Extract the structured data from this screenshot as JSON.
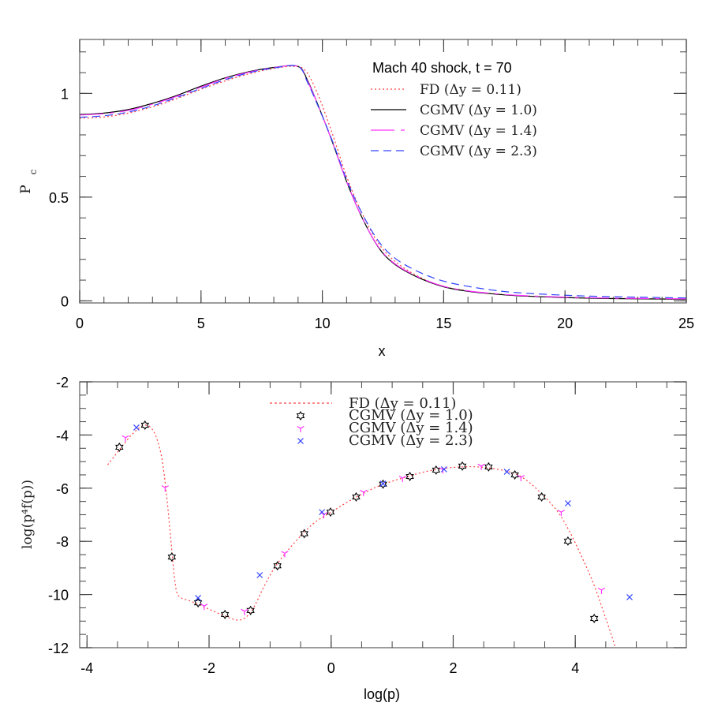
{
  "chart_data": [
    {
      "type": "line",
      "title": "Mach 40 shock, t = 70",
      "xlabel": "x",
      "ylabel": "P_c",
      "xlim": [
        0,
        25
      ],
      "ylim": [
        -0.01,
        1.26
      ],
      "xticks": [
        0,
        5,
        10,
        15,
        20,
        25
      ],
      "xtick_labels": [
        "0",
        "5",
        "10",
        "15",
        "20",
        "25"
      ],
      "yticks": [
        0,
        0.5,
        1
      ],
      "ytick_labels": [
        "0",
        "0.5",
        "1"
      ],
      "grid": false,
      "legend_position": "upper right",
      "series": [
        {
          "name": "FD (Δy = 0.11)",
          "color": "#ff4040",
          "style": "dotted",
          "x": [
            0,
            1,
            2,
            3,
            4,
            5,
            6,
            7,
            8,
            8.8,
            9.3,
            9.8,
            10.4,
            11.0,
            11.6,
            12.3,
            13,
            14,
            15,
            16,
            17,
            18,
            20,
            22,
            25
          ],
          "y": [
            0.88,
            0.886,
            0.905,
            0.935,
            0.975,
            1.02,
            1.06,
            1.095,
            1.12,
            1.13,
            1.11,
            1.0,
            0.81,
            0.6,
            0.43,
            0.28,
            0.19,
            0.115,
            0.07,
            0.048,
            0.035,
            0.026,
            0.016,
            0.012,
            0.008
          ]
        },
        {
          "name": "CGMV (Δy = 1.0)",
          "color": "#000000",
          "style": "solid",
          "x": [
            0,
            1,
            2,
            3,
            4,
            5,
            6,
            7,
            8,
            9.0,
            9.4,
            9.8,
            10.4,
            11.0,
            11.6,
            12.3,
            13,
            14,
            15,
            16,
            17,
            18,
            20,
            22,
            25
          ],
          "y": [
            0.898,
            0.905,
            0.922,
            0.952,
            0.99,
            1.035,
            1.075,
            1.105,
            1.125,
            1.13,
            1.06,
            0.95,
            0.77,
            0.575,
            0.41,
            0.26,
            0.175,
            0.11,
            0.068,
            0.046,
            0.034,
            0.025,
            0.016,
            0.011,
            0.008
          ]
        },
        {
          "name": "CGMV (Δy = 1.4)",
          "color": "#ff33ff",
          "style": "long-dash",
          "x": [
            0,
            1,
            2,
            3,
            4,
            5,
            6,
            7,
            8,
            9.0,
            9.4,
            9.8,
            10.4,
            11.0,
            11.6,
            12.3,
            13,
            14,
            15,
            16,
            17,
            18,
            20,
            22,
            25
          ],
          "y": [
            0.896,
            0.902,
            0.918,
            0.948,
            0.986,
            1.03,
            1.072,
            1.103,
            1.124,
            1.13,
            1.055,
            0.95,
            0.77,
            0.575,
            0.41,
            0.262,
            0.178,
            0.113,
            0.07,
            0.048,
            0.036,
            0.027,
            0.018,
            0.013,
            0.01
          ]
        },
        {
          "name": "CGMV (Δy = 2.3)",
          "color": "#3344ff",
          "style": "dashed",
          "x": [
            0,
            1,
            2,
            3,
            4,
            5,
            6,
            7,
            8,
            9.0,
            9.4,
            9.8,
            10.4,
            11.0,
            11.6,
            12.3,
            13,
            14,
            15,
            16,
            17,
            18,
            20,
            22,
            25
          ],
          "y": [
            0.885,
            0.892,
            0.91,
            0.94,
            0.98,
            1.024,
            1.066,
            1.1,
            1.122,
            1.13,
            1.05,
            0.945,
            0.775,
            0.585,
            0.43,
            0.29,
            0.205,
            0.138,
            0.095,
            0.07,
            0.052,
            0.04,
            0.027,
            0.02,
            0.014
          ]
        }
      ]
    },
    {
      "type": "scatter",
      "title": "",
      "xlabel": "log(p)",
      "ylabel": "log(p⁴f(p))",
      "xlim": [
        -4.12,
        5.82
      ],
      "ylim": [
        -12,
        -2
      ],
      "xticks": [
        -4,
        -2,
        0,
        2,
        4
      ],
      "xtick_labels": [
        "-4",
        "-2",
        "0",
        "2",
        "4"
      ],
      "yticks": [
        -12,
        -10,
        -8,
        -6,
        -4,
        -2
      ],
      "ytick_labels": [
        "-12",
        "-10",
        "-8",
        "-6",
        "-4",
        "-2"
      ],
      "grid": false,
      "legend_position": "upper center",
      "series": [
        {
          "name": "FD (Δy = 0.11)",
          "kind": "line",
          "color": "#ff4040",
          "style": "dotted",
          "x": [
            -3.66,
            -3.45,
            -3.25,
            -3.05,
            -2.9,
            -2.78,
            -2.7,
            -2.64,
            -2.6,
            -2.56,
            -2.5,
            -2.3,
            -2.1,
            -1.8,
            -1.5,
            -1.3,
            -1.1,
            -0.9,
            -0.6,
            -0.3,
            0.0,
            0.4,
            0.8,
            1.2,
            1.6,
            2.0,
            2.4,
            2.8,
            3.1,
            3.4,
            3.7,
            3.9,
            4.1,
            4.3,
            4.5,
            4.66
          ],
          "y": [
            -5.12,
            -4.5,
            -3.95,
            -3.63,
            -3.9,
            -4.8,
            -6.2,
            -7.6,
            -8.6,
            -9.5,
            -10.05,
            -10.25,
            -10.45,
            -10.75,
            -10.96,
            -10.6,
            -9.7,
            -8.9,
            -8.05,
            -7.35,
            -6.9,
            -6.35,
            -5.9,
            -5.6,
            -5.35,
            -5.22,
            -5.2,
            -5.32,
            -5.55,
            -6.1,
            -6.85,
            -7.6,
            -8.55,
            -9.6,
            -10.9,
            -12.0
          ]
        },
        {
          "name": "CGMV (Δy = 1.0)",
          "kind": "marker",
          "marker": "star",
          "color": "#000000",
          "x": [
            -3.47,
            -3.05,
            -2.61,
            -2.18,
            -1.74,
            -1.32,
            -0.88,
            -0.44,
            -0.01,
            0.41,
            0.85,
            1.29,
            1.72,
            2.15,
            2.58,
            3.01,
            3.45,
            3.88,
            4.31
          ],
          "y": [
            -4.46,
            -3.63,
            -8.59,
            -10.31,
            -10.75,
            -10.6,
            -8.92,
            -7.71,
            -6.9,
            -6.33,
            -5.85,
            -5.56,
            -5.32,
            -5.17,
            -5.2,
            -5.5,
            -6.33,
            -7.99,
            -10.9
          ]
        },
        {
          "name": "CGMV (Δy = 1.4)",
          "kind": "marker",
          "marker": "tri",
          "color": "#ff33ff",
          "x": [
            -3.37,
            -2.72,
            -2.08,
            -1.42,
            -0.76,
            -0.12,
            0.53,
            1.17,
            1.83,
            2.46,
            3.11,
            3.77,
            4.43
          ],
          "y": [
            -4.1,
            -5.98,
            -10.43,
            -10.63,
            -8.45,
            -6.99,
            -6.15,
            -5.62,
            -5.3,
            -5.17,
            -5.59,
            -6.9,
            -9.83
          ]
        },
        {
          "name": "CGMV (Δy = 2.3)",
          "kind": "marker",
          "marker": "x",
          "color": "#3344ff",
          "x": [
            -3.19,
            -2.18,
            -1.17,
            -0.15,
            0.85,
            1.85,
            2.88,
            3.88,
            4.89
          ],
          "y": [
            -3.72,
            -10.13,
            -9.27,
            -6.9,
            -5.83,
            -5.29,
            -5.38,
            -6.57,
            -10.1
          ]
        }
      ]
    }
  ],
  "top_panel": {
    "title": "Mach 40 shock, t = 70",
    "xlabel": "x",
    "ylabel_main": "P",
    "ylabel_sub": "c",
    "legend": [
      {
        "label": "FD (Δy = 0.11)"
      },
      {
        "label": "CGMV (Δy = 1.0)"
      },
      {
        "label": "CGMV (Δy = 1.4)"
      },
      {
        "label": "CGMV (Δy = 2.3)"
      }
    ]
  },
  "bottom_panel": {
    "xlabel": "log(p)",
    "ylabel": "log(p⁴f(p))",
    "legend": [
      {
        "label": "FD (Δy = 0.11)"
      },
      {
        "label": "CGMV (Δy = 1.0)"
      },
      {
        "label": "CGMV (Δy = 1.4)"
      },
      {
        "label": "CGMV (Δy = 2.3)"
      }
    ]
  }
}
